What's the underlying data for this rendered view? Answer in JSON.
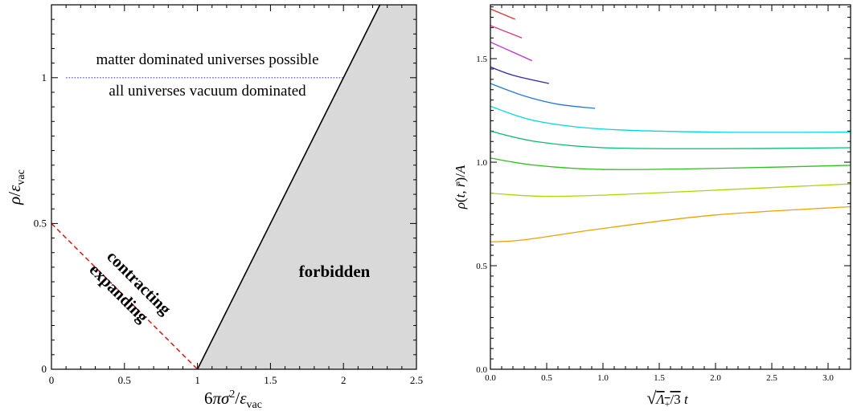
{
  "chart_data": [
    {
      "type": "line",
      "xlabel": "6πσ²/ε_vac",
      "ylabel": "ρ/ε_vac",
      "xlim": [
        0,
        2.5
      ],
      "ylim": [
        0,
        1.25
      ],
      "x_ticks": [
        "0",
        "0.5",
        "1",
        "1.5",
        "2",
        "2.5"
      ],
      "y_ticks": [
        "0",
        "0.5",
        "1"
      ],
      "regions": [
        {
          "label": "forbidden",
          "color": "#d9d9d9",
          "boundary": [
            [
              1,
              0
            ],
            [
              2.25,
              1.25
            ],
            [
              2.5,
              1.25
            ],
            [
              2.5,
              0
            ]
          ]
        }
      ],
      "lines": [
        {
          "style": "solid",
          "color": "#000000",
          "points": [
            [
              1,
              0
            ],
            [
              2.25,
              1.25
            ]
          ]
        },
        {
          "style": "dashed",
          "color": "#e02020",
          "points": [
            [
              0,
              0.5
            ],
            [
              1,
              0
            ]
          ]
        },
        {
          "style": "dotted",
          "color": "#3344cc",
          "points": [
            [
              0.1,
              1
            ],
            [
              2.0,
              1
            ]
          ]
        }
      ],
      "annotations": {
        "above_line": "matter dominated universes possible",
        "below_line": "all universes vacuum dominated",
        "forbidden": "forbidden",
        "contracting": "contracting",
        "expanding": "expanding"
      },
      "grid": false
    },
    {
      "type": "line",
      "xlabel": "√Λ₊/3 t",
      "ylabel": "ρ(t, r̄)/A",
      "xlim": [
        0,
        3.2
      ],
      "ylim": [
        0,
        1.76
      ],
      "x_ticks": [
        "0.0",
        "0.5",
        "1.0",
        "1.5",
        "2.0",
        "2.5",
        "3.0"
      ],
      "y_ticks": [
        "0.0",
        "0.5",
        "1.0",
        "1.5"
      ],
      "grid": false,
      "series": [
        {
          "color": "#e03030",
          "points": [
            [
              0,
              1.74
            ],
            [
              0.22,
              1.69
            ]
          ]
        },
        {
          "color": "#e0307a",
          "points": [
            [
              0,
              1.66
            ],
            [
              0.28,
              1.6
            ]
          ]
        },
        {
          "color": "#c030d0",
          "points": [
            [
              0,
              1.58
            ],
            [
              0.37,
              1.49
            ]
          ]
        },
        {
          "color": "#2a2ab0",
          "points": [
            [
              0,
              1.46
            ],
            [
              0.2,
              1.42
            ],
            [
              0.52,
              1.38
            ]
          ]
        },
        {
          "color": "#1f78e0",
          "points": [
            [
              0,
              1.38
            ],
            [
              0.3,
              1.32
            ],
            [
              0.6,
              1.28
            ],
            [
              0.93,
              1.26
            ]
          ]
        },
        {
          "color": "#00d8e0",
          "points": [
            [
              0,
              1.27
            ],
            [
              0.4,
              1.2
            ],
            [
              1.0,
              1.16
            ],
            [
              2.0,
              1.145
            ],
            [
              3.2,
              1.145
            ]
          ]
        },
        {
          "color": "#00c070",
          "points": [
            [
              0,
              1.15
            ],
            [
              0.4,
              1.1
            ],
            [
              1.0,
              1.07
            ],
            [
              2.0,
              1.065
            ],
            [
              3.2,
              1.07
            ]
          ]
        },
        {
          "color": "#30c020",
          "points": [
            [
              0,
              1.02
            ],
            [
              0.4,
              0.985
            ],
            [
              1.0,
              0.965
            ],
            [
              2.0,
              0.97
            ],
            [
              3.2,
              0.985
            ]
          ]
        },
        {
          "color": "#a8d800",
          "points": [
            [
              0,
              0.85
            ],
            [
              0.5,
              0.835
            ],
            [
              1.2,
              0.845
            ],
            [
              2.2,
              0.87
            ],
            [
              3.2,
              0.895
            ]
          ]
        },
        {
          "color": "#f0a000",
          "points": [
            [
              0,
              0.615
            ],
            [
              0.3,
              0.625
            ],
            [
              1.0,
              0.68
            ],
            [
              2.0,
              0.745
            ],
            [
              3.2,
              0.785
            ]
          ]
        }
      ]
    }
  ]
}
